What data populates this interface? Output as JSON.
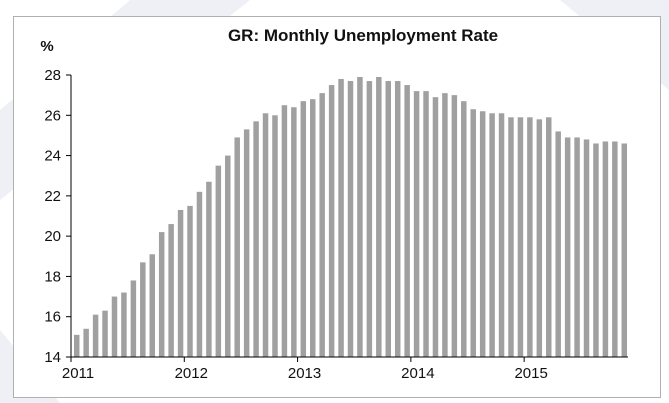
{
  "colors": {
    "bar": "#a0a0a0",
    "axis": "#000000",
    "background_accent": "#e6e8f2"
  },
  "chart_data": {
    "type": "bar",
    "title": "GR: Monthly Unemployment Rate",
    "ylabel": "%",
    "xlabel": "",
    "ylim": [
      14,
      28
    ],
    "yticks": [
      14,
      16,
      18,
      20,
      22,
      24,
      26,
      28
    ],
    "xtick_labels": [
      "2011",
      "2012",
      "2013",
      "2014",
      "2015"
    ],
    "grid": false,
    "legend": "none",
    "categories": [
      "2011-01",
      "2011-02",
      "2011-03",
      "2011-04",
      "2011-05",
      "2011-06",
      "2011-07",
      "2011-08",
      "2011-09",
      "2011-10",
      "2011-11",
      "2011-12",
      "2012-01",
      "2012-02",
      "2012-03",
      "2012-04",
      "2012-05",
      "2012-06",
      "2012-07",
      "2012-08",
      "2012-09",
      "2012-10",
      "2012-11",
      "2012-12",
      "2013-01",
      "2013-02",
      "2013-03",
      "2013-04",
      "2013-05",
      "2013-06",
      "2013-07",
      "2013-08",
      "2013-09",
      "2013-10",
      "2013-11",
      "2013-12",
      "2014-01",
      "2014-02",
      "2014-03",
      "2014-04",
      "2014-05",
      "2014-06",
      "2014-07",
      "2014-08",
      "2014-09",
      "2014-10",
      "2014-11",
      "2014-12",
      "2015-01",
      "2015-02",
      "2015-03",
      "2015-04",
      "2015-05",
      "2015-06",
      "2015-07",
      "2015-08",
      "2015-09",
      "2015-10",
      "2015-11"
    ],
    "values": [
      15.1,
      15.4,
      16.1,
      16.3,
      17.0,
      17.2,
      17.8,
      18.7,
      19.1,
      20.2,
      20.6,
      21.3,
      21.5,
      22.2,
      22.7,
      23.5,
      24.0,
      24.9,
      25.3,
      25.7,
      26.1,
      26.0,
      26.5,
      26.4,
      26.7,
      26.8,
      27.1,
      27.5,
      27.8,
      27.7,
      27.9,
      27.7,
      27.9,
      27.7,
      27.7,
      27.5,
      27.2,
      27.2,
      26.9,
      27.1,
      27.0,
      26.7,
      26.3,
      26.2,
      26.1,
      26.1,
      25.9,
      25.9,
      25.9,
      25.8,
      25.9,
      25.2,
      24.9,
      24.9,
      24.8,
      24.6,
      24.7,
      24.7,
      24.6
    ]
  }
}
